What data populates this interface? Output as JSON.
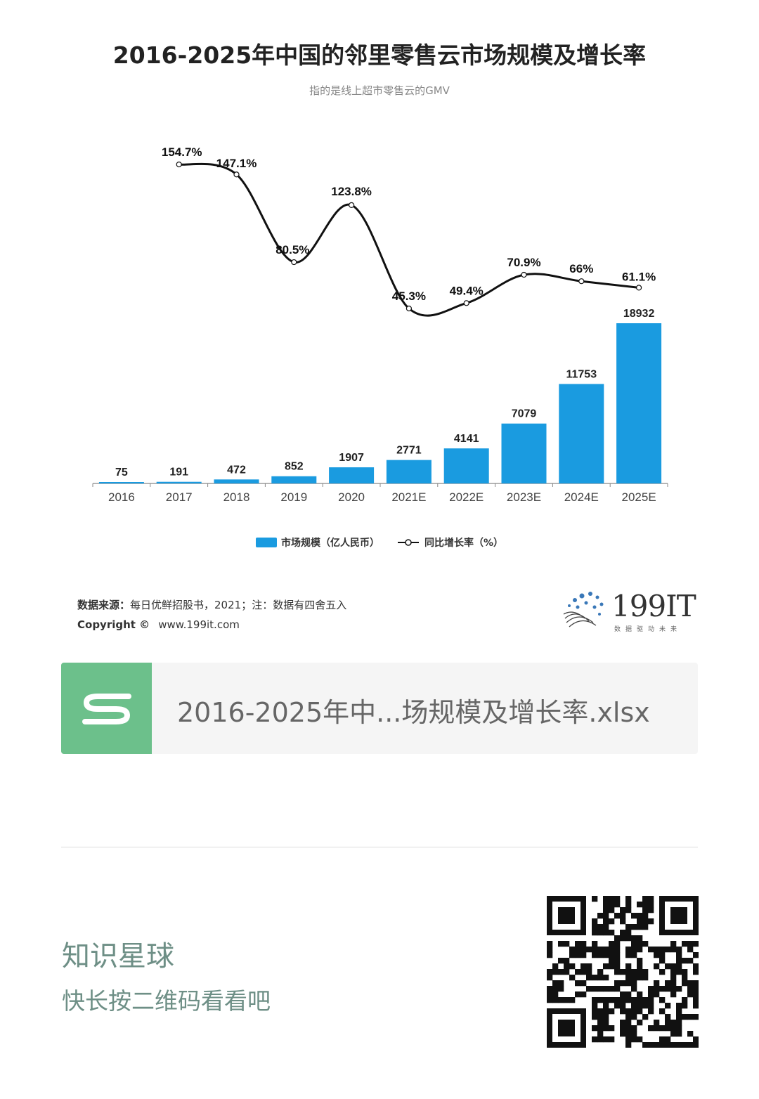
{
  "chart_data": {
    "type": "bar+line",
    "title": "2016-2025年中国的邻里零售云市场规模及增长率",
    "subtitle": "指的是线上超市零售云的GMV",
    "categories": [
      "2016",
      "2017",
      "2018",
      "2019",
      "2020",
      "2021E",
      "2022E",
      "2023E",
      "2024E",
      "2025E"
    ],
    "series": [
      {
        "name": "市场规模（亿人民币）",
        "type": "bar",
        "color": "#1a9be0",
        "values": [
          75,
          191,
          472,
          852,
          1907,
          2771,
          4141,
          7079,
          11753,
          18932
        ],
        "labels": [
          "75",
          "191",
          "472",
          "852",
          "1907",
          "2771",
          "4141",
          "7079",
          "11753",
          "18932"
        ]
      },
      {
        "name": "同比增长率（%）",
        "type": "line",
        "color": "#111111",
        "values": [
          null,
          154.7,
          147.1,
          80.5,
          123.8,
          45.3,
          49.4,
          70.9,
          66,
          61.1
        ],
        "labels": [
          "",
          "154.7%",
          "147.1%",
          "80.5%",
          "123.8%",
          "45.3%",
          "49.4%",
          "70.9%",
          "66%",
          "61.1%"
        ]
      }
    ],
    "legend_position": "bottom-center",
    "grid": false,
    "y_bar_range": [
      0,
      19000
    ],
    "y_line_range": [
      45,
      155
    ]
  },
  "legend": {
    "bar_label": "市场规模（亿人民币）",
    "line_label": "同比增长率（%）"
  },
  "source": {
    "label": "数据来源：",
    "text": "每日优鲜招股书，2021；注：数据有四舍五入"
  },
  "copyright": {
    "label": "Copyright ©",
    "url": "www.199it.com"
  },
  "logo": {
    "text": "199IT",
    "tagline": "数据驱动未来"
  },
  "file_card": {
    "filename": "2016-2025年中...场规模及增长率.xlsx",
    "icon": "spreadsheet-s-icon"
  },
  "knowledge_planet": {
    "title": "知识星球",
    "subtitle": "快长按二维码看看吧"
  },
  "qr": {
    "icon": "qr-code-icon"
  }
}
